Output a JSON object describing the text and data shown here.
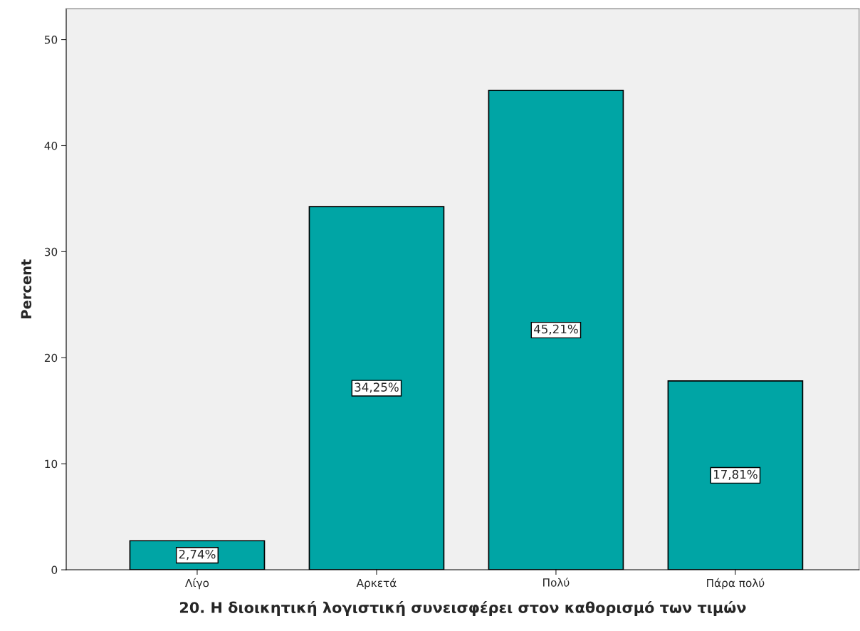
{
  "chart_data": {
    "type": "bar",
    "categories": [
      "Λίγο",
      "Αρκετά",
      "Πολύ",
      "Πάρα πολύ"
    ],
    "values": [
      2.74,
      34.25,
      45.21,
      17.81
    ],
    "value_labels": [
      "2,74%",
      "34,25%",
      "45,21%",
      "17,81%"
    ],
    "color": "#00a5a5",
    "xlabel": "20. Η διοικητική λογιστική συνεισφέρει στον καθορισμό των τιμών",
    "ylabel": "Percent",
    "ylim": [
      0,
      52.9
    ],
    "yticks": [
      0,
      10,
      20,
      30,
      40,
      50
    ],
    "grid": false,
    "legend": false
  }
}
